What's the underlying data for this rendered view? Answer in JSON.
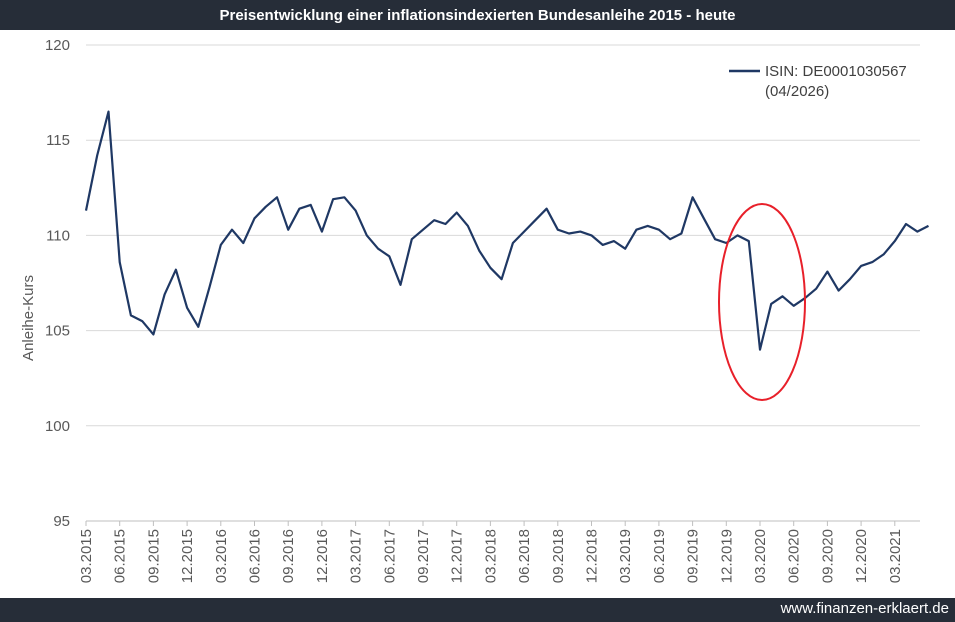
{
  "header": {
    "title": "Preisentwicklung einer inflationsindexierten Bundesanleihe 2015 - heute"
  },
  "footer": {
    "source": "www.finanzen-erklaert.de"
  },
  "colors": {
    "bar": "#262d38",
    "series": "#1f3864",
    "grid": "#d9d9d9",
    "highlight": "#e8202a",
    "axis_text": "#595959"
  },
  "chart_data": {
    "type": "line",
    "title": "Preisentwicklung einer inflationsindexierten Bundesanleihe 2015 - heute",
    "xlabel": "",
    "ylabel": "Anleihe-Kurs",
    "ylim": [
      95,
      120
    ],
    "yticks": [
      95,
      100,
      105,
      110,
      115,
      120
    ],
    "xticks": [
      "03.2015",
      "06.2015",
      "09.2015",
      "12.2015",
      "03.2016",
      "06.2016",
      "09.2016",
      "12.2016",
      "03.2017",
      "06.2017",
      "09.2017",
      "12.2017",
      "03.2018",
      "06.2018",
      "09.2018",
      "12.2018",
      "03.2019",
      "06.2019",
      "09.2019",
      "12.2019",
      "03.2020",
      "06.2020",
      "09.2020",
      "12.2020",
      "03.2021"
    ],
    "grid": "horizontal",
    "legend_position": "top-right",
    "series": [
      {
        "name": "ISIN: DE0001030567 (04/2026)",
        "x": [
          "03.2015",
          "04.2015",
          "05.2015",
          "06.2015",
          "07.2015",
          "08.2015",
          "09.2015",
          "10.2015",
          "11.2015",
          "12.2015",
          "01.2016",
          "02.2016",
          "03.2016",
          "04.2016",
          "05.2016",
          "06.2016",
          "07.2016",
          "08.2016",
          "09.2016",
          "10.2016",
          "11.2016",
          "12.2016",
          "01.2017",
          "02.2017",
          "03.2017",
          "04.2017",
          "05.2017",
          "06.2017",
          "07.2017",
          "08.2017",
          "09.2017",
          "10.2017",
          "11.2017",
          "12.2017",
          "01.2018",
          "02.2018",
          "03.2018",
          "04.2018",
          "05.2018",
          "06.2018",
          "07.2018",
          "08.2018",
          "09.2018",
          "10.2018",
          "11.2018",
          "12.2018",
          "01.2019",
          "02.2019",
          "03.2019",
          "04.2019",
          "05.2019",
          "06.2019",
          "07.2019",
          "08.2019",
          "09.2019",
          "10.2019",
          "11.2019",
          "12.2019",
          "01.2020",
          "02.2020",
          "03.2020",
          "04.2020",
          "05.2020",
          "06.2020",
          "07.2020",
          "08.2020",
          "09.2020",
          "10.2020",
          "11.2020",
          "12.2020",
          "01.2021",
          "02.2021",
          "03.2021",
          "04.2021",
          "05.2021",
          "06.2021"
        ],
        "values": [
          111.3,
          114.2,
          116.5,
          108.6,
          105.8,
          105.5,
          104.8,
          106.9,
          108.2,
          106.2,
          105.2,
          107.3,
          109.5,
          110.3,
          109.6,
          110.9,
          111.5,
          112.0,
          110.3,
          111.4,
          111.6,
          110.2,
          111.9,
          112.0,
          111.3,
          110.0,
          109.3,
          108.9,
          107.4,
          109.8,
          110.3,
          110.8,
          110.6,
          111.2,
          110.5,
          109.2,
          108.3,
          107.7,
          109.6,
          110.2,
          110.8,
          111.4,
          110.3,
          110.1,
          110.2,
          110.0,
          109.5,
          109.7,
          109.3,
          110.3,
          110.5,
          110.3,
          109.8,
          110.1,
          112.0,
          110.9,
          109.8,
          109.6,
          110.0,
          109.7,
          104.0,
          106.4,
          106.8,
          106.3,
          106.7,
          107.2,
          108.1,
          107.1,
          107.7,
          108.4,
          108.6,
          109.0,
          109.7,
          110.6,
          110.2,
          110.5
        ]
      }
    ],
    "annotations": [
      {
        "type": "ellipse",
        "around": "03.2020",
        "color": "#e8202a"
      }
    ]
  }
}
